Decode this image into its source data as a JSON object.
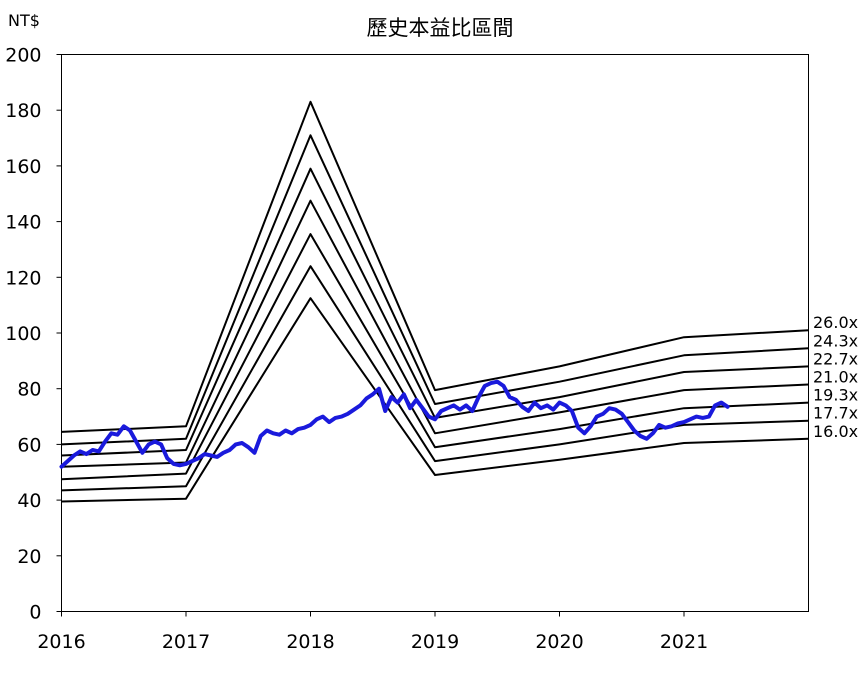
{
  "chart_data": {
    "type": "line",
    "title": "歷史本益比區間",
    "ylabel": "NT$",
    "xlim": [
      2016.0,
      2022.0
    ],
    "ylim": [
      0,
      200
    ],
    "x_ticks": [
      2016,
      2017,
      2018,
      2019,
      2020,
      2021
    ],
    "y_ticks": [
      0,
      20,
      40,
      60,
      80,
      100,
      120,
      140,
      160,
      180,
      200
    ],
    "grid": false,
    "legend": "right-edge labels",
    "bands": [
      {
        "name": "26.0x",
        "color": "#000000",
        "x": [
          2016.0,
          2017.0,
          2018.0,
          2019.0,
          2020.0,
          2021.0,
          2022.0
        ],
        "values": [
          64.5,
          66.5,
          183.0,
          79.5,
          88.0,
          98.5,
          101.0
        ]
      },
      {
        "name": "24.3x",
        "color": "#000000",
        "x": [
          2016.0,
          2017.0,
          2018.0,
          2019.0,
          2020.0,
          2021.0,
          2022.0
        ],
        "values": [
          60.0,
          62.0,
          171.0,
          74.5,
          82.5,
          92.0,
          94.5
        ]
      },
      {
        "name": "22.7x",
        "color": "#000000",
        "x": [
          2016.0,
          2017.0,
          2018.0,
          2019.0,
          2020.0,
          2021.0,
          2022.0
        ],
        "values": [
          56.0,
          58.0,
          159.0,
          69.5,
          77.0,
          86.0,
          88.0
        ]
      },
      {
        "name": "21.0x",
        "color": "#000000",
        "x": [
          2016.0,
          2017.0,
          2018.0,
          2019.0,
          2020.0,
          2021.0,
          2022.0
        ],
        "values": [
          52.0,
          53.5,
          147.5,
          64.0,
          71.5,
          79.5,
          81.5
        ]
      },
      {
        "name": "19.3x",
        "color": "#000000",
        "x": [
          2016.0,
          2017.0,
          2018.0,
          2019.0,
          2020.0,
          2021.0,
          2022.0
        ],
        "values": [
          47.5,
          49.5,
          135.5,
          59.0,
          65.5,
          73.0,
          75.0
        ]
      },
      {
        "name": "17.7x",
        "color": "#000000",
        "x": [
          2016.0,
          2017.0,
          2018.0,
          2019.0,
          2020.0,
          2021.0,
          2022.0
        ],
        "values": [
          43.5,
          45.0,
          124.0,
          54.0,
          60.0,
          67.0,
          68.5
        ]
      },
      {
        "name": "16.0x",
        "color": "#000000",
        "x": [
          2016.0,
          2017.0,
          2018.0,
          2019.0,
          2020.0,
          2021.0,
          2022.0
        ],
        "values": [
          39.5,
          40.5,
          112.5,
          49.0,
          54.5,
          60.5,
          62.0
        ]
      }
    ],
    "price": {
      "color": "#1a1adc",
      "x": [
        2016.0,
        2016.05,
        2016.1,
        2016.15,
        2016.2,
        2016.25,
        2016.3,
        2016.35,
        2016.4,
        2016.45,
        2016.5,
        2016.55,
        2016.6,
        2016.65,
        2016.7,
        2016.75,
        2016.8,
        2016.85,
        2016.9,
        2016.95,
        2017.0,
        2017.05,
        2017.1,
        2017.15,
        2017.2,
        2017.25,
        2017.3,
        2017.35,
        2017.4,
        2017.45,
        2017.5,
        2017.55,
        2017.6,
        2017.65,
        2017.7,
        2017.75,
        2017.8,
        2017.85,
        2017.9,
        2017.95,
        2018.0,
        2018.05,
        2018.1,
        2018.15,
        2018.2,
        2018.25,
        2018.3,
        2018.35,
        2018.4,
        2018.45,
        2018.5,
        2018.55,
        2018.6,
        2018.65,
        2018.7,
        2018.75,
        2018.8,
        2018.85,
        2018.9,
        2018.95,
        2019.0,
        2019.05,
        2019.1,
        2019.15,
        2019.2,
        2019.25,
        2019.3,
        2019.35,
        2019.4,
        2019.45,
        2019.5,
        2019.55,
        2019.6,
        2019.65,
        2019.7,
        2019.75,
        2019.8,
        2019.85,
        2019.9,
        2019.95,
        2020.0,
        2020.05,
        2020.1,
        2020.15,
        2020.2,
        2020.25,
        2020.3,
        2020.35,
        2020.4,
        2020.45,
        2020.5,
        2020.55,
        2020.6,
        2020.65,
        2020.7,
        2020.75,
        2020.8,
        2020.85,
        2020.9,
        2020.95,
        2021.0,
        2021.05,
        2021.1,
        2021.15,
        2021.2,
        2021.25,
        2021.3,
        2021.35
      ],
      "values": [
        52.0,
        54.0,
        56.0,
        57.5,
        56.5,
        58.0,
        57.5,
        61.0,
        64.0,
        63.5,
        66.5,
        65.0,
        61.0,
        57.0,
        60.0,
        61.0,
        60.0,
        55.0,
        53.0,
        52.5,
        53.0,
        54.0,
        55.0,
        56.5,
        56.0,
        55.5,
        57.0,
        58.0,
        60.0,
        60.5,
        59.0,
        57.0,
        63.0,
        65.0,
        64.0,
        63.5,
        65.0,
        64.0,
        65.5,
        66.0,
        67.0,
        69.0,
        70.0,
        68.0,
        69.5,
        70.0,
        71.0,
        72.5,
        74.0,
        76.5,
        78.0,
        80.0,
        72.0,
        77.0,
        75.0,
        78.0,
        73.0,
        76.0,
        73.0,
        70.0,
        69.0,
        72.0,
        73.0,
        74.0,
        72.5,
        74.0,
        72.0,
        77.0,
        81.0,
        82.0,
        82.5,
        81.0,
        77.0,
        76.0,
        73.5,
        72.0,
        75.0,
        73.0,
        74.0,
        72.5,
        75.0,
        74.0,
        72.0,
        66.0,
        64.0,
        66.5,
        70.0,
        71.0,
        73.0,
        72.5,
        71.0,
        68.0,
        65.0,
        63.0,
        62.0,
        64.0,
        67.0,
        66.0,
        66.5,
        67.5,
        68.0,
        69.0,
        70.0,
        69.5,
        70.0,
        74.0,
        75.0,
        73.5
      ]
    }
  }
}
